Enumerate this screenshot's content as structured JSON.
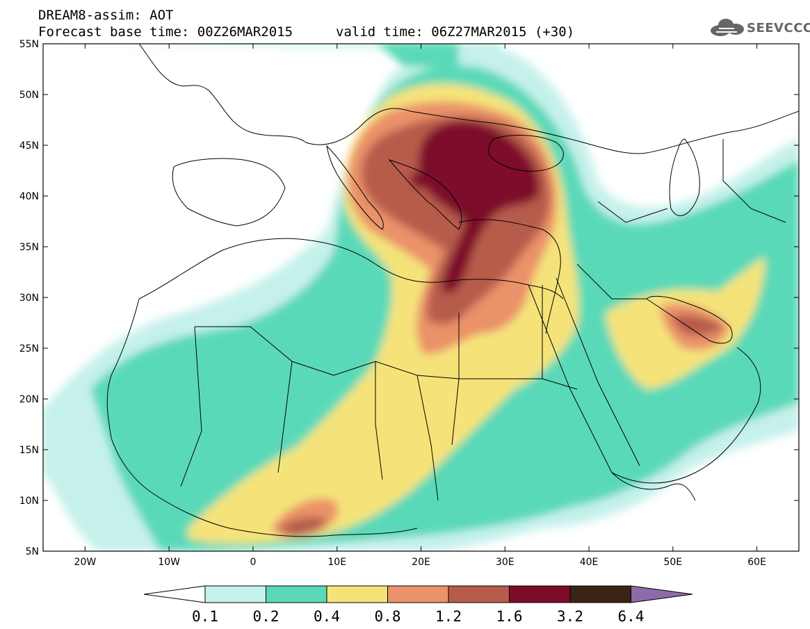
{
  "header": {
    "line1": "DREAM8-assim: AOT",
    "line2": "Forecast base time: 00Z26MAR2015",
    "line3": "valid time: 06Z27MAR2015 (+30)"
  },
  "logo": {
    "text": "SEEVCCC",
    "icon": "cloud-icon"
  },
  "map": {
    "lon_range": [
      -25,
      65
    ],
    "lat_range": [
      5,
      55
    ],
    "lat_labels": [
      "55N",
      "50N",
      "45N",
      "40N",
      "35N",
      "30N",
      "25N",
      "20N",
      "15N",
      "10N",
      "5N"
    ],
    "lon_labels": [
      "20W",
      "10W",
      "0",
      "10E",
      "20E",
      "30E",
      "40E",
      "50E",
      "60E"
    ]
  },
  "colorbar": {
    "levels": [
      "0.1",
      "0.2",
      "0.4",
      "0.8",
      "1.2",
      "1.6",
      "3.2",
      "6.4"
    ],
    "colors": [
      "#ffffff",
      "#c6f1eb",
      "#5ad9b8",
      "#f5e37a",
      "#ea9269",
      "#b75b4b",
      "#7d0b2a",
      "#3b2415",
      "#8d6bab"
    ]
  }
}
